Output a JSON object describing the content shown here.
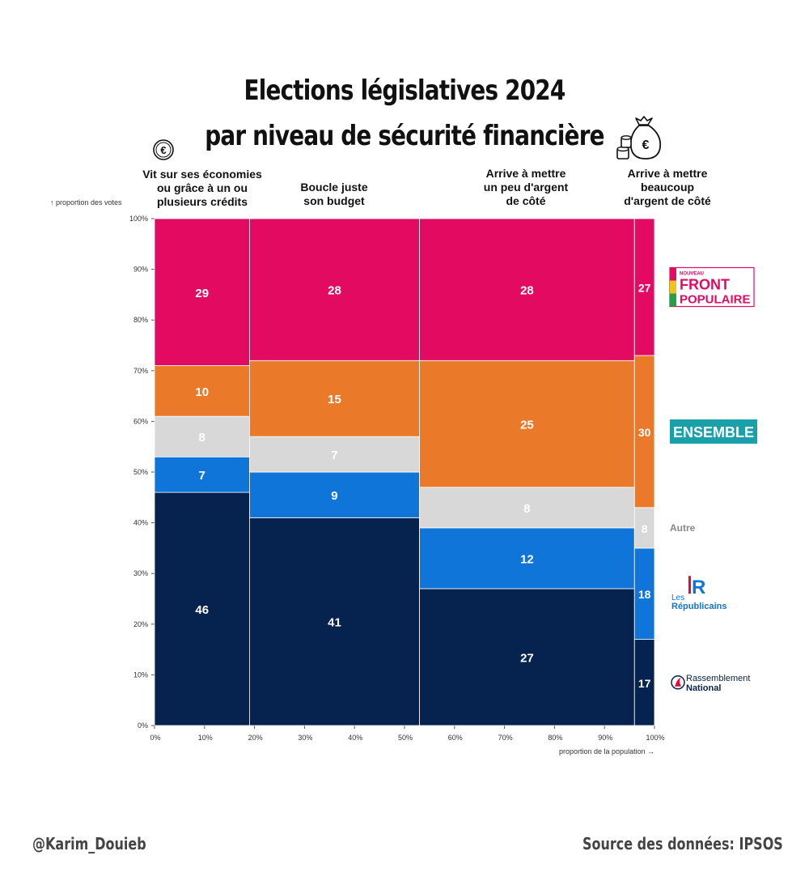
{
  "title_line1": "Elections législatives 2024",
  "title_line2": "par niveau de sécurité financière",
  "y_axis_label": "↑ proportion des votes",
  "x_axis_label": "proportion de la population →",
  "footer_left": "@Karim_Douieb",
  "footer_right": "Source des données: IPSOS",
  "icons": {
    "left": "euro-coin-icon",
    "right": "money-bag-icon"
  },
  "colors": {
    "Front Populaire": "#e30b61",
    "Ensemble": "#ea7a2a",
    "Autre": "#d8d8d8",
    "Les Républicains": "#0f75d9",
    "Rassemblement National": "#06234f"
  },
  "chart_data": {
    "type": "mosaic",
    "xlabel": "proportion de la population →",
    "ylabel": "↑ proportion des votes",
    "xlim": [
      0,
      100
    ],
    "ylim": [
      0,
      100
    ],
    "x_ticks": [
      "0%",
      "10%",
      "20%",
      "30%",
      "40%",
      "50%",
      "60%",
      "70%",
      "80%",
      "90%",
      "100%"
    ],
    "y_ticks": [
      "0%",
      "10%",
      "20%",
      "30%",
      "40%",
      "50%",
      "60%",
      "70%",
      "80%",
      "90%",
      "100%"
    ],
    "categories": [
      "Vit sur ses économies\nou grâce à un ou\nplusieurs crédits",
      "Boucle juste\nson budget",
      "Arrive à mettre\nun peu d'argent\nde côté",
      "Arrive à mettre\nbeaucoup\nd'argent de côté"
    ],
    "population_share": [
      19,
      34,
      43,
      4
    ],
    "series": [
      {
        "name": "Rassemblement National",
        "values": [
          46,
          41,
          27,
          17
        ]
      },
      {
        "name": "Les Républicains",
        "values": [
          7,
          9,
          12,
          18
        ]
      },
      {
        "name": "Autre",
        "values": [
          8,
          7,
          8,
          8
        ]
      },
      {
        "name": "Ensemble",
        "values": [
          10,
          15,
          25,
          30
        ]
      },
      {
        "name": "Front Populaire",
        "values": [
          29,
          28,
          28,
          27
        ]
      }
    ],
    "legend_labels": {
      "Front Populaire": [
        "NOUVEAU",
        "FRONT",
        "POPULAIRE"
      ],
      "Ensemble": [
        "ENSEMBLE"
      ],
      "Autre": [
        "Autre"
      ],
      "Les Républicains": [
        "Les",
        "Républicains"
      ],
      "Rassemblement National": [
        "Rassemblement",
        "National"
      ]
    },
    "legend_placement": "right"
  }
}
